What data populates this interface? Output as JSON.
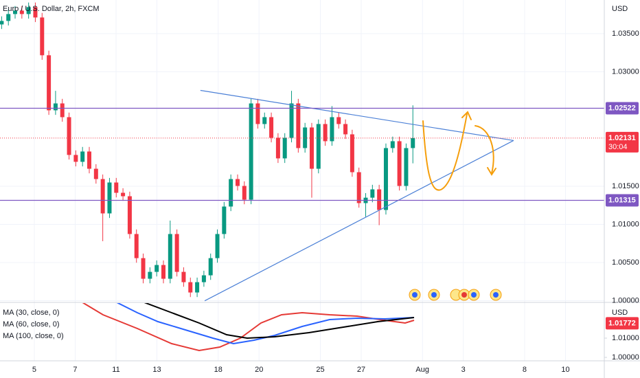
{
  "chart_data": [
    {
      "type": "candlestick",
      "title": "Euro / U.S. Dollar, 2h, FXCM",
      "axis_unit": "USD",
      "up_color": "#089981",
      "down_color": "#f23645",
      "grid": true,
      "xlim": [
        -1.68,
        27.9
      ],
      "ylim": [
        0.9996,
        1.0394
      ],
      "yticks": [
        {
          "value": 1.0,
          "label": "1.00000"
        },
        {
          "value": 1.005,
          "label": "1.00500"
        },
        {
          "value": 1.01,
          "label": "1.01000"
        },
        {
          "value": 1.015,
          "label": "1.01500"
        },
        {
          "value": 1.03,
          "label": "1.03000"
        },
        {
          "value": 1.035,
          "label": "1.03500"
        }
      ],
      "xticks": [
        {
          "value": 0,
          "label": "5"
        },
        {
          "value": 2,
          "label": "7"
        },
        {
          "value": 4,
          "label": "11"
        },
        {
          "value": 6,
          "label": "13"
        },
        {
          "value": 9,
          "label": "18"
        },
        {
          "value": 11,
          "label": "20"
        },
        {
          "value": 14,
          "label": "25"
        },
        {
          "value": 16,
          "label": "27"
        },
        {
          "value": 19,
          "label": "Aug"
        },
        {
          "value": 21,
          "label": "3"
        },
        {
          "value": 24,
          "label": "8"
        },
        {
          "value": 26,
          "label": "10"
        }
      ],
      "x": [
        -1.6,
        -1.27,
        -0.94,
        -0.61,
        -0.28,
        0.05,
        0.38,
        0.71,
        1.04,
        1.37,
        1.7,
        2.03,
        2.36,
        2.69,
        3.02,
        3.35,
        3.68,
        4.01,
        4.34,
        4.67,
        5,
        5.33,
        5.66,
        5.99,
        6.32,
        6.65,
        6.98,
        7.31,
        7.64,
        7.97,
        8.3,
        8.63,
        8.96,
        9.29,
        9.62,
        9.95,
        10.28,
        10.61,
        10.94,
        11.27,
        11.6,
        11.93,
        12.26,
        12.59,
        12.92,
        13.25,
        13.58,
        13.91,
        14.24,
        14.57,
        14.9,
        15.23,
        15.56,
        15.89,
        16.22,
        16.55,
        16.88,
        17.21,
        17.54,
        17.87,
        18.2,
        18.53
      ],
      "open": [
        1.0362,
        1.03666,
        1.03756,
        1.03801,
        1.03756,
        1.03847,
        1.03711,
        1.03216,
        1.02495,
        1.02585,
        1.02405,
        1.0191,
        1.0182,
        1.01955,
        1.01729,
        1.01594,
        1.01144,
        1.01549,
        1.01414,
        1.01369,
        1.00874,
        1.00558,
        1.00288,
        1.00378,
        1.00468,
        1.00288,
        1.00874,
        1.00378,
        1.00243,
        1.00108,
        1.00243,
        1.00333,
        1.00558,
        1.00874,
        1.01234,
        1.01594,
        1.01504,
        1.01324,
        1.02585,
        1.02315,
        1.02405,
        1.02135,
        1.01865,
        1.02135,
        1.02585,
        1.02,
        1.0227,
        1.01729,
        1.02315,
        1.0209,
        1.02405,
        1.02315,
        1.0218,
        1.01684,
        1.01279,
        1.0135,
        1.01459,
        1.01189,
        1.02,
        1.0209,
        1.01504,
        1.02
      ],
      "high": [
        1.03726,
        1.03816,
        1.03861,
        1.03861,
        1.03907,
        1.03907,
        1.03771,
        1.03276,
        1.0275,
        1.02645,
        1.02465,
        1.0197,
        1.02015,
        1.02015,
        1.01789,
        1.01654,
        1.01609,
        1.01609,
        1.01474,
        1.01429,
        1.00934,
        1.00618,
        1.00438,
        1.00528,
        1.00528,
        1.0105,
        1.00934,
        1.00438,
        1.00303,
        1.00303,
        1.00393,
        1.00618,
        1.00934,
        1.01294,
        1.01654,
        1.01654,
        1.01564,
        1.02645,
        1.02645,
        1.02465,
        1.02465,
        1.02195,
        1.02195,
        1.0275,
        1.02645,
        1.0233,
        1.0233,
        1.02375,
        1.02375,
        1.0255,
        1.02465,
        1.02375,
        1.0224,
        1.01744,
        1.0141,
        1.01519,
        1.01519,
        1.0206,
        1.0215,
        1.0215,
        1.0206,
        1.0256
      ],
      "low": [
        1.0356,
        1.03606,
        1.03696,
        1.03696,
        1.03696,
        1.03651,
        1.03156,
        1.02435,
        1.02435,
        1.02345,
        1.0185,
        1.0176,
        1.0176,
        1.01669,
        1.01534,
        1.0078,
        1.01084,
        1.01354,
        1.01309,
        1.00814,
        1.00498,
        1.00228,
        1.00228,
        1.00318,
        1.00228,
        1.00228,
        1.00318,
        1.00183,
        1.00048,
        1.00048,
        1.00183,
        1.00273,
        1.00498,
        1.00814,
        1.01174,
        1.01444,
        1.01264,
        1.01264,
        1.02255,
        1.02255,
        1.02075,
        1.01805,
        1.01805,
        1.02075,
        1.0194,
        1.0194,
        1.0135,
        1.01669,
        1.0203,
        1.0203,
        1.02255,
        1.0212,
        1.01624,
        1.01219,
        1.011,
        1.0129,
        1.0099,
        1.01129,
        1.0194,
        1.01444,
        1.01444,
        1.018
      ],
      "close": [
        1.03666,
        1.03756,
        1.03801,
        1.03756,
        1.03847,
        1.03711,
        1.03216,
        1.02495,
        1.02585,
        1.02405,
        1.0191,
        1.0182,
        1.01955,
        1.01729,
        1.01594,
        1.01144,
        1.01549,
        1.01414,
        1.01369,
        1.00874,
        1.00558,
        1.00288,
        1.00378,
        1.00468,
        1.00288,
        1.00874,
        1.00378,
        1.00243,
        1.00108,
        1.00243,
        1.00333,
        1.00558,
        1.00874,
        1.01234,
        1.01594,
        1.01504,
        1.01324,
        1.02585,
        1.02315,
        1.02405,
        1.02135,
        1.01865,
        1.02135,
        1.02585,
        1.02,
        1.0227,
        1.01729,
        1.02315,
        1.0209,
        1.02405,
        1.02315,
        1.0218,
        1.01684,
        1.01279,
        1.0135,
        1.01459,
        1.01189,
        1.02,
        1.0209,
        1.01504,
        1.02,
        1.02131
      ],
      "price_lines": [
        {
          "value": 1.02522,
          "label": "1.02522",
          "color": "#7e57c2"
        },
        {
          "value": 1.01315,
          "label": "1.01315",
          "color": "#7e57c2"
        }
      ],
      "current": {
        "value": 1.02131,
        "label": "1.02131",
        "countdown": "30:04",
        "color": "#f23645"
      },
      "trendlines": [
        {
          "color": "#4a7fd6",
          "x": [
            8.13,
            23.46
          ],
          "y": [
            1.02756,
            1.02099
          ]
        },
        {
          "color": "#4a7fd6",
          "x": [
            8.34,
            23.46
          ],
          "y": [
            0.99999,
            1.02099
          ]
        }
      ]
    },
    {
      "type": "line",
      "axis_unit": "USD",
      "ylim": [
        0.99821,
        1.02857
      ],
      "yticks": [
        {
          "value": 1.0,
          "label": "1.00000"
        },
        {
          "value": 1.01,
          "label": "1.01000"
        }
      ],
      "last_value": {
        "value": 1.01772,
        "label": "1.01772",
        "color": "#f23645"
      },
      "series": [
        {
          "name": "MA (30, close, 0)",
          "color": "#e53935",
          "x": [
            2.353,
            3.361,
            5.042,
            6.723,
            8.067,
            9.076,
            10.084,
            11.092,
            12.101,
            13.109,
            14.454,
            15.798,
            17.143,
            18.151,
            18.588
          ],
          "values": [
            1.02857,
            1.02214,
            1.015,
            1.00714,
            1.00357,
            1.00536,
            1.01,
            1.01786,
            1.02214,
            1.02321,
            1.02214,
            1.02143,
            1.01929,
            1.01786,
            1.01929
          ]
        },
        {
          "name": "MA (60, close, 0)",
          "color": "#2962ff",
          "x": [
            4.034,
            5.042,
            6.05,
            7.395,
            8.739,
            9.748,
            10.756,
            11.765,
            13.109,
            14.454,
            15.798,
            17.143,
            18.588
          ],
          "values": [
            1.02857,
            1.02321,
            1.01857,
            1.01429,
            1.01,
            1.00714,
            1.00893,
            1.01143,
            1.01607,
            1.01964,
            1.02036,
            1.02,
            1.02071
          ]
        },
        {
          "name": "MA (100, close, 0)",
          "color": "#000000",
          "x": [
            5.378,
            6.723,
            8.067,
            9.412,
            10.42,
            11.765,
            13.445,
            15.126,
            16.807,
            18.588
          ],
          "values": [
            1.02857,
            1.02321,
            1.01786,
            1.01179,
            1.01,
            1.01071,
            1.01286,
            1.01571,
            1.01857,
            1.02071
          ]
        }
      ]
    }
  ]
}
